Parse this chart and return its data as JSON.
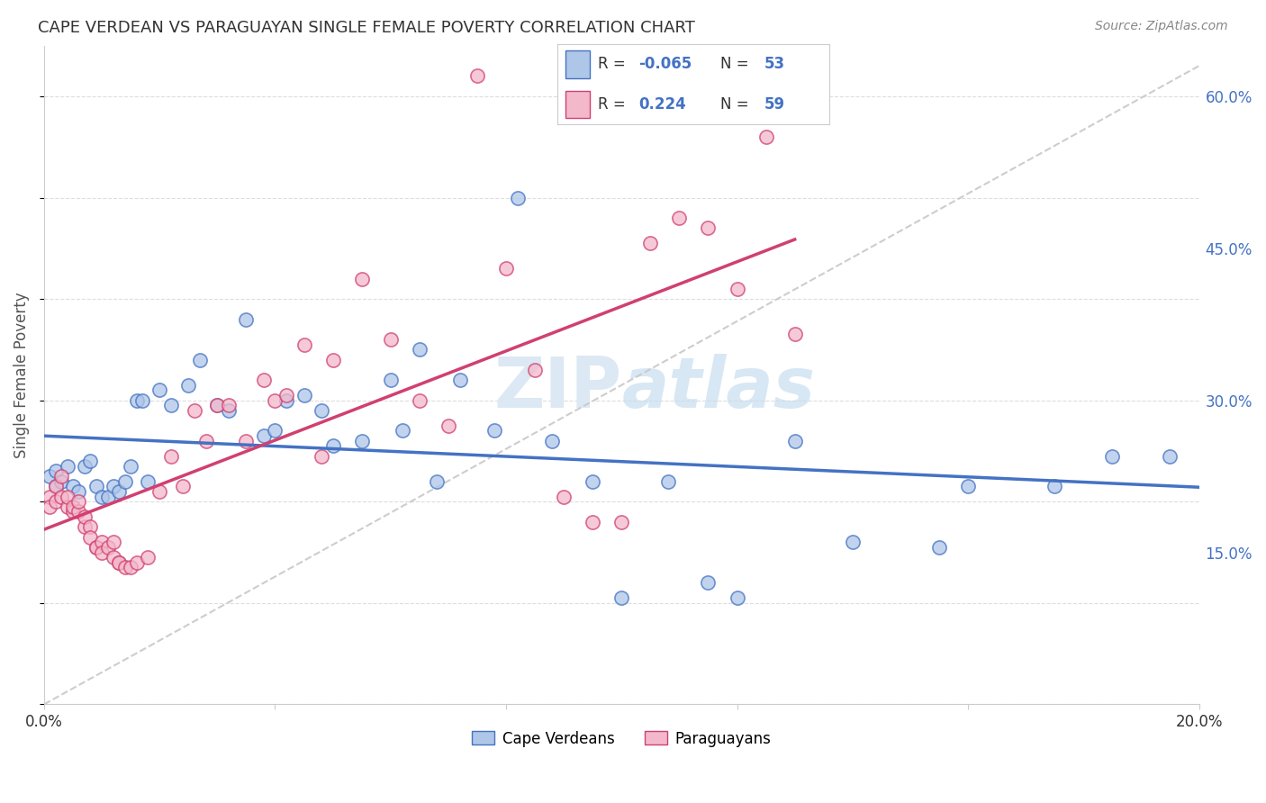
{
  "title": "CAPE VERDEAN VS PARAGUAYAN SINGLE FEMALE POVERTY CORRELATION CHART",
  "source": "Source: ZipAtlas.com",
  "ylabel": "Single Female Poverty",
  "legend_label1": "Cape Verdeans",
  "legend_label2": "Paraguayans",
  "R1": "-0.065",
  "N1": "53",
  "R2": "0.224",
  "N2": "59",
  "color_blue_fill": "#aec6e8",
  "color_blue_edge": "#4472c4",
  "color_pink_fill": "#f4b8cb",
  "color_pink_edge": "#d04070",
  "color_blue_line": "#4472c4",
  "color_pink_line": "#d04070",
  "color_dashed": "#c8c8c8",
  "xlim": [
    0.0,
    0.2
  ],
  "ylim": [
    0.0,
    0.65
  ],
  "yticks": [
    0.15,
    0.3,
    0.45,
    0.6
  ],
  "ytick_labels": [
    "15.0%",
    "30.0%",
    "45.0%",
    "60.0%"
  ],
  "xticks": [
    0.0,
    0.04,
    0.08,
    0.12,
    0.16,
    0.2
  ],
  "xtick_labels": [
    "0.0%",
    "",
    "",
    "",
    "",
    "20.0%"
  ],
  "blue_x": [
    0.001,
    0.002,
    0.002,
    0.003,
    0.004,
    0.005,
    0.006,
    0.007,
    0.008,
    0.009,
    0.01,
    0.011,
    0.012,
    0.013,
    0.014,
    0.015,
    0.016,
    0.017,
    0.018,
    0.02,
    0.022,
    0.025,
    0.027,
    0.03,
    0.032,
    0.035,
    0.038,
    0.04,
    0.042,
    0.045,
    0.048,
    0.05,
    0.055,
    0.06,
    0.062,
    0.065,
    0.068,
    0.072,
    0.078,
    0.082,
    0.088,
    0.095,
    0.1,
    0.108,
    0.115,
    0.12,
    0.13,
    0.14,
    0.155,
    0.16,
    0.175,
    0.185,
    0.195
  ],
  "blue_y": [
    0.225,
    0.215,
    0.23,
    0.22,
    0.235,
    0.215,
    0.21,
    0.235,
    0.24,
    0.215,
    0.205,
    0.205,
    0.215,
    0.21,
    0.22,
    0.235,
    0.3,
    0.3,
    0.22,
    0.31,
    0.295,
    0.315,
    0.34,
    0.295,
    0.29,
    0.38,
    0.265,
    0.27,
    0.3,
    0.305,
    0.29,
    0.255,
    0.26,
    0.32,
    0.27,
    0.35,
    0.22,
    0.32,
    0.27,
    0.5,
    0.26,
    0.22,
    0.105,
    0.22,
    0.12,
    0.105,
    0.26,
    0.16,
    0.155,
    0.215,
    0.215,
    0.245,
    0.245
  ],
  "pink_x": [
    0.001,
    0.001,
    0.002,
    0.002,
    0.003,
    0.003,
    0.004,
    0.004,
    0.005,
    0.005,
    0.006,
    0.006,
    0.007,
    0.007,
    0.008,
    0.008,
    0.009,
    0.009,
    0.01,
    0.01,
    0.011,
    0.012,
    0.012,
    0.013,
    0.013,
    0.014,
    0.015,
    0.016,
    0.018,
    0.02,
    0.022,
    0.024,
    0.026,
    0.028,
    0.03,
    0.032,
    0.035,
    0.038,
    0.04,
    0.042,
    0.045,
    0.048,
    0.05,
    0.055,
    0.06,
    0.065,
    0.07,
    0.075,
    0.08,
    0.085,
    0.09,
    0.095,
    0.1,
    0.105,
    0.11,
    0.115,
    0.12,
    0.125,
    0.13
  ],
  "pink_y": [
    0.205,
    0.195,
    0.215,
    0.2,
    0.225,
    0.205,
    0.195,
    0.205,
    0.19,
    0.195,
    0.19,
    0.2,
    0.175,
    0.185,
    0.175,
    0.165,
    0.155,
    0.155,
    0.16,
    0.15,
    0.155,
    0.145,
    0.16,
    0.14,
    0.14,
    0.135,
    0.135,
    0.14,
    0.145,
    0.21,
    0.245,
    0.215,
    0.29,
    0.26,
    0.295,
    0.295,
    0.26,
    0.32,
    0.3,
    0.305,
    0.355,
    0.245,
    0.34,
    0.42,
    0.36,
    0.3,
    0.275,
    0.62,
    0.43,
    0.33,
    0.205,
    0.18,
    0.18,
    0.455,
    0.48,
    0.47,
    0.41,
    0.56,
    0.365
  ]
}
